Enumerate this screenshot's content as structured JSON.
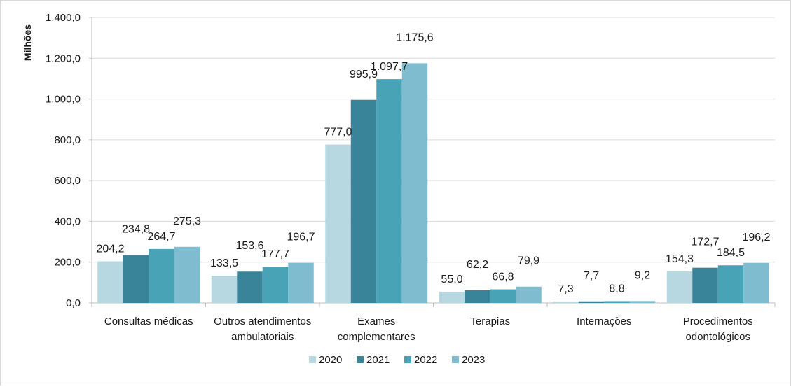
{
  "chart_data": {
    "type": "bar",
    "ylabel": "Milhões",
    "ylim": [
      0,
      1400
    ],
    "y_ticks": [
      "0,0",
      "200,0",
      "400,0",
      "600,0",
      "800,0",
      "1.000,0",
      "1.200,0",
      "1.400,0"
    ],
    "grid": true,
    "legend_position": "bottom",
    "categories": [
      [
        "Consultas médicas"
      ],
      [
        "Outros atendimentos",
        "ambulatoriais"
      ],
      [
        "Exames",
        "complementares"
      ],
      [
        "Terapias"
      ],
      [
        "Internações"
      ],
      [
        "Procedimentos",
        "odontológicos"
      ]
    ],
    "series": [
      {
        "name": "2020",
        "color": "#b7d7e1",
        "values": [
          204.2,
          133.5,
          777.0,
          55.0,
          7.3,
          154.3
        ],
        "labels": [
          "204,2",
          "133,5",
          "777,0",
          "55,0",
          "7,3",
          "154,3"
        ]
      },
      {
        "name": "2021",
        "color": "#3a8499",
        "values": [
          234.8,
          153.6,
          995.9,
          62.2,
          7.7,
          172.7
        ],
        "labels": [
          "234,8",
          "153,6",
          "995,9",
          "62,2",
          "7,7",
          "172,7"
        ]
      },
      {
        "name": "2022",
        "color": "#48a3b7",
        "values": [
          264.7,
          177.7,
          1097.7,
          66.8,
          8.8,
          184.5
        ],
        "labels": [
          "264,7",
          "177,7",
          "1.097,7",
          "66,8",
          "8,8",
          "184,5"
        ]
      },
      {
        "name": "2023",
        "color": "#7fbccf",
        "values": [
          275.3,
          196.7,
          1175.6,
          79.9,
          9.2,
          196.2
        ],
        "labels": [
          "275,3",
          "196,7",
          "1.175,6",
          "79,9",
          "9,2",
          "196,2"
        ]
      }
    ]
  }
}
